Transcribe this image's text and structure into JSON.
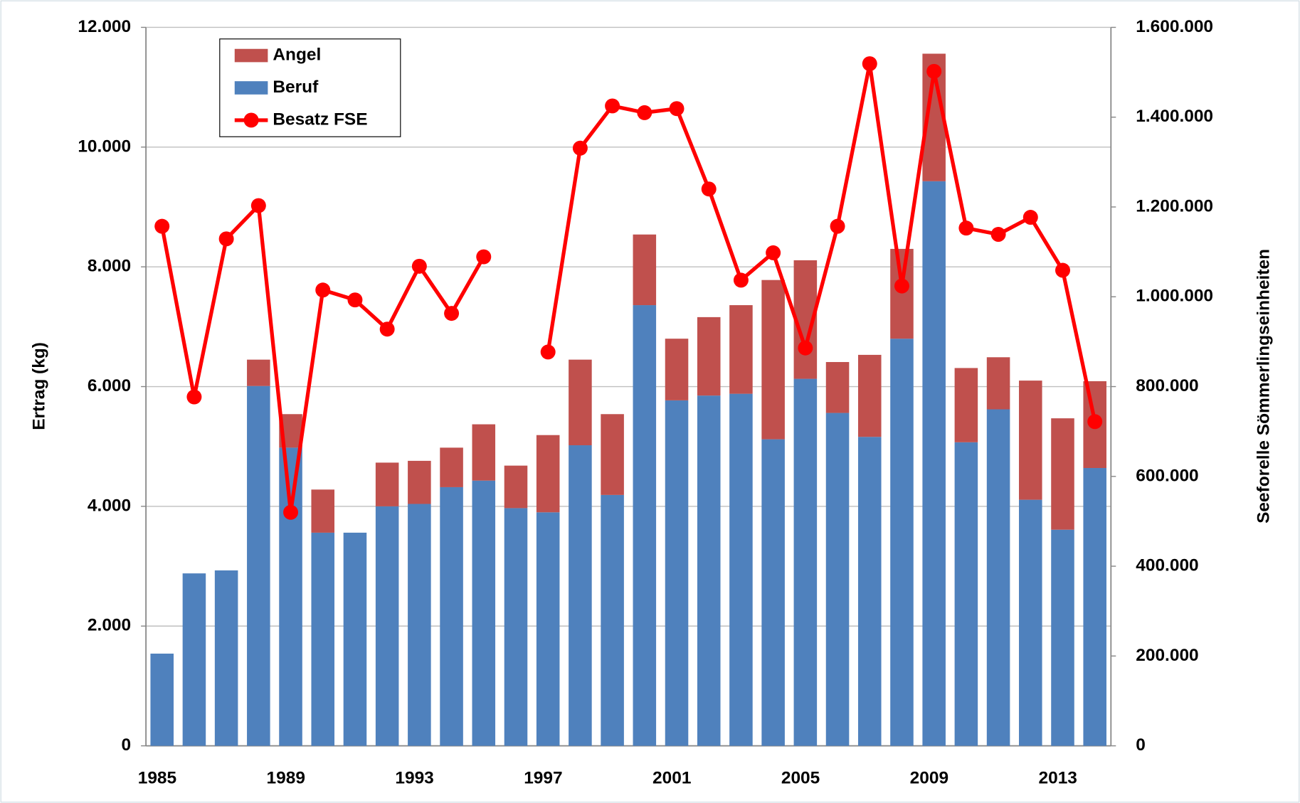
{
  "chart_data": {
    "type": "bar",
    "stacked": true,
    "categories": [
      "1985",
      null,
      null,
      null,
      "1989",
      null,
      null,
      null,
      "1993",
      null,
      null,
      null,
      "1997",
      null,
      null,
      null,
      "2001",
      null,
      null,
      null,
      "2005",
      null,
      null,
      null,
      "2009",
      null,
      null,
      null,
      "2013",
      null
    ],
    "series": [
      {
        "name": "Beruf",
        "color": "#4f81bd",
        "values": [
          1540,
          2880,
          2930,
          6010,
          4980,
          3560,
          3560,
          4000,
          4040,
          4320,
          4430,
          3970,
          3900,
          5020,
          4190,
          7360,
          5770,
          5850,
          5880,
          5120,
          6130,
          5560,
          5160,
          6800,
          9430,
          5070,
          5620,
          4110,
          3610,
          4640
        ]
      },
      {
        "name": "Angel",
        "color": "#c0504d",
        "values": [
          0,
          0,
          0,
          440,
          560,
          720,
          0,
          730,
          720,
          660,
          940,
          710,
          1290,
          1430,
          1350,
          1180,
          1030,
          1310,
          1480,
          2660,
          1980,
          850,
          1370,
          1500,
          2130,
          1240,
          870,
          1990,
          1860,
          1450
        ]
      },
      {
        "name": "Besatz FSE",
        "color": "#ff0000",
        "type": "line",
        "axis": "y2",
        "values": [
          1157000,
          777000,
          1129000,
          1203000,
          520000,
          1015000,
          993000,
          928000,
          1068000,
          963000,
          1089000,
          null,
          877000,
          1331000,
          1425000,
          1410000,
          1419000,
          1240000,
          1037000,
          1098000,
          886000,
          1157000,
          1519000,
          1024000,
          1502000,
          1153000,
          1139000,
          1177000,
          1059000,
          722000
        ]
      }
    ],
    "y_label": "Ertrag (kg)",
    "y2_label": "Seeforelle Sömmerlingseinheiten",
    "ylim": [
      0,
      12000
    ],
    "yticks": [
      0,
      {
        "value": 2000,
        "label": "2.000"
      },
      {
        "value": 4000,
        "label": "4.000"
      },
      {
        "value": 6000,
        "label": "6.000"
      },
      {
        "value": 8000,
        "label": "8.000"
      },
      {
        "value": 10000,
        "label": "10.000"
      },
      {
        "value": 12000,
        "label": "12.000"
      }
    ],
    "y2lim": [
      0,
      1600000
    ],
    "y2ticks": [
      0,
      {
        "value": 200000,
        "label": "200.000"
      },
      {
        "value": 400000,
        "label": "400.000"
      },
      {
        "value": 600000,
        "label": "600.000"
      },
      {
        "value": 800000,
        "label": "800.000"
      },
      {
        "value": 1000000,
        "label": "1.000.000"
      },
      {
        "value": 1200000,
        "label": "1.200.000"
      },
      {
        "value": 1400000,
        "label": "1.400.000"
      },
      {
        "value": 1600000,
        "label": "1.600.000"
      }
    ],
    "grid": true,
    "legend": "top-left"
  }
}
